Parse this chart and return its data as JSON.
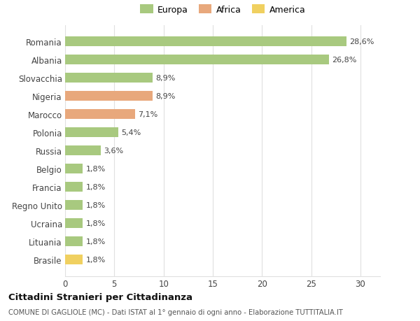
{
  "categories": [
    "Romania",
    "Albania",
    "Slovacchia",
    "Nigeria",
    "Marocco",
    "Polonia",
    "Russia",
    "Belgio",
    "Francia",
    "Regno Unito",
    "Ucraina",
    "Lituania",
    "Brasile"
  ],
  "values": [
    28.6,
    26.8,
    8.9,
    8.9,
    7.1,
    5.4,
    3.6,
    1.8,
    1.8,
    1.8,
    1.8,
    1.8,
    1.8
  ],
  "labels": [
    "28,6%",
    "26,8%",
    "8,9%",
    "8,9%",
    "7,1%",
    "5,4%",
    "3,6%",
    "1,8%",
    "1,8%",
    "1,8%",
    "1,8%",
    "1,8%",
    "1,8%"
  ],
  "colors": [
    "#a8c97f",
    "#a8c97f",
    "#a8c97f",
    "#e8a87c",
    "#e8a87c",
    "#a8c97f",
    "#a8c97f",
    "#a8c97f",
    "#a8c97f",
    "#a8c97f",
    "#a8c97f",
    "#a8c97f",
    "#f0d060"
  ],
  "legend": [
    {
      "label": "Europa",
      "color": "#a8c97f"
    },
    {
      "label": "Africa",
      "color": "#e8a87c"
    },
    {
      "label": "America",
      "color": "#f0d060"
    }
  ],
  "xlim": [
    0,
    32
  ],
  "xticks": [
    0,
    5,
    10,
    15,
    20,
    25,
    30
  ],
  "title": "Cittadini Stranieri per Cittadinanza",
  "subtitle": "COMUNE DI GAGLIOLE (MC) - Dati ISTAT al 1° gennaio di ogni anno - Elaborazione TUTTITALIA.IT",
  "background_color": "#ffffff",
  "grid_color": "#e0e0e0",
  "bar_height": 0.55
}
